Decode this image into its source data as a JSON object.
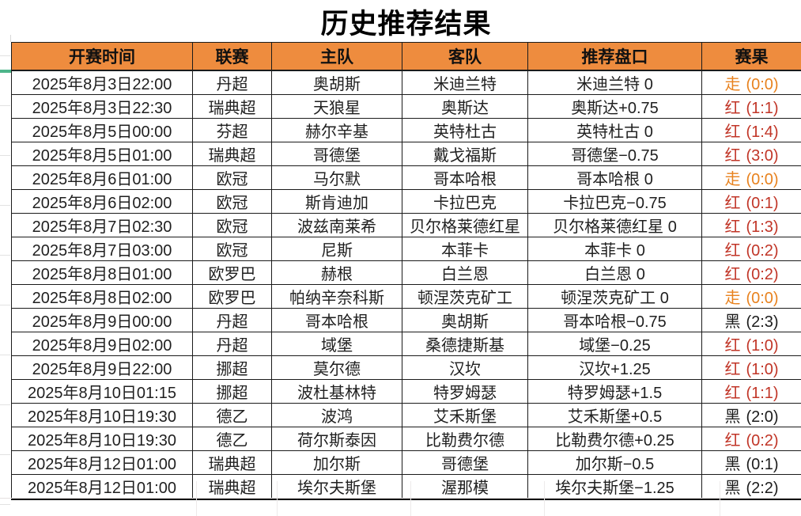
{
  "title": "历史推荐结果",
  "table": {
    "columns": [
      "开赛时间",
      "联赛",
      "主队",
      "客队",
      "推荐盘口",
      "赛果"
    ],
    "rows": [
      {
        "time": "2025年8月3日22:00",
        "league": "丹超",
        "home": "奥胡斯",
        "away": "米迪兰特",
        "handicap": "米迪兰特 0",
        "verdict": "走",
        "score": "(0:0)"
      },
      {
        "time": "2025年8月3日22:30",
        "league": "瑞典超",
        "home": "天狼星",
        "away": "奥斯达",
        "handicap": "奥斯达+0.75",
        "verdict": "红",
        "score": "(1:1)"
      },
      {
        "time": "2025年8月5日00:00",
        "league": "芬超",
        "home": "赫尔辛基",
        "away": "英特杜古",
        "handicap": "英特杜古 0",
        "verdict": "红",
        "score": "(1:4)"
      },
      {
        "time": "2025年8月5日01:00",
        "league": "瑞典超",
        "home": "哥德堡",
        "away": "戴戈福斯",
        "handicap": "哥德堡−0.75",
        "verdict": "红",
        "score": "(3:0)"
      },
      {
        "time": "2025年8月6日01:00",
        "league": "欧冠",
        "home": "马尔默",
        "away": "哥本哈根",
        "handicap": "哥本哈根 0",
        "verdict": "走",
        "score": "(0:0)"
      },
      {
        "time": "2025年8月6日02:00",
        "league": "欧冠",
        "home": "斯肯迪加",
        "away": "卡拉巴克",
        "handicap": "卡拉巴克−0.75",
        "verdict": "红",
        "score": "(0:1)"
      },
      {
        "time": "2025年8月7日02:30",
        "league": "欧冠",
        "home": "波兹南莱希",
        "away": "贝尔格莱德红星",
        "handicap": "贝尔格莱德红星 0",
        "verdict": "红",
        "score": "(1:3)"
      },
      {
        "time": "2025年8月7日03:00",
        "league": "欧冠",
        "home": "尼斯",
        "away": "本菲卡",
        "handicap": "本菲卡 0",
        "verdict": "红",
        "score": "(0:2)"
      },
      {
        "time": "2025年8月8日01:00",
        "league": "欧罗巴",
        "home": "赫根",
        "away": "白兰恩",
        "handicap": "白兰恩 0",
        "verdict": "红",
        "score": "(0:2)"
      },
      {
        "time": "2025年8月8日02:00",
        "league": "欧罗巴",
        "home": "帕纳辛奈科斯",
        "away": "顿涅茨克矿工",
        "handicap": "顿涅茨克矿工 0",
        "verdict": "走",
        "score": "(0:0)"
      },
      {
        "time": "2025年8月9日00:00",
        "league": "丹超",
        "home": "哥本哈根",
        "away": "奥胡斯",
        "handicap": "哥本哈根−0.75",
        "verdict": "黑",
        "score": "(2:3)"
      },
      {
        "time": "2025年8月9日02:00",
        "league": "丹超",
        "home": "域堡",
        "away": "桑德捷斯基",
        "handicap": "域堡−0.25",
        "verdict": "红",
        "score": "(1:0)"
      },
      {
        "time": "2025年8月9日22:00",
        "league": "挪超",
        "home": "莫尔德",
        "away": "汉坎",
        "handicap": "汉坎+1.25",
        "verdict": "红",
        "score": "(1:0)"
      },
      {
        "time": "2025年8月10日01:15",
        "league": "挪超",
        "home": "波杜基林特",
        "away": "特罗姆瑟",
        "handicap": "特罗姆瑟+1.5",
        "verdict": "红",
        "score": "(1:1)"
      },
      {
        "time": "2025年8月10日19:30",
        "league": "德乙",
        "home": "波鸿",
        "away": "艾禾斯堡",
        "handicap": "艾禾斯堡+0.5",
        "verdict": "黑",
        "score": "(2:0)"
      },
      {
        "time": "2025年8月10日19:30",
        "league": "德乙",
        "home": "荷尔斯泰因",
        "away": "比勒费尔德",
        "handicap": "比勒费尔德+0.25",
        "verdict": "红",
        "score": "(0:2)"
      },
      {
        "time": "2025年8月12日01:00",
        "league": "瑞典超",
        "home": "加尔斯",
        "away": "哥德堡",
        "handicap": "加尔斯−0.5",
        "verdict": "黑",
        "score": "(0:1)"
      },
      {
        "time": "2025年8月12日01:00",
        "league": "瑞典超",
        "home": "埃尔夫斯堡",
        "away": "渥那模",
        "handicap": "埃尔夫斯堡−1.25",
        "verdict": "黑",
        "score": "(2:2)"
      }
    ]
  },
  "colors": {
    "header_bg": "#EE8C3E",
    "border": "#1b1b1b",
    "accent_green": "#4DB58A",
    "result_colors": {
      "走": "#E8821E",
      "红": "#C13527",
      "黑": "#1C1C1C"
    }
  }
}
